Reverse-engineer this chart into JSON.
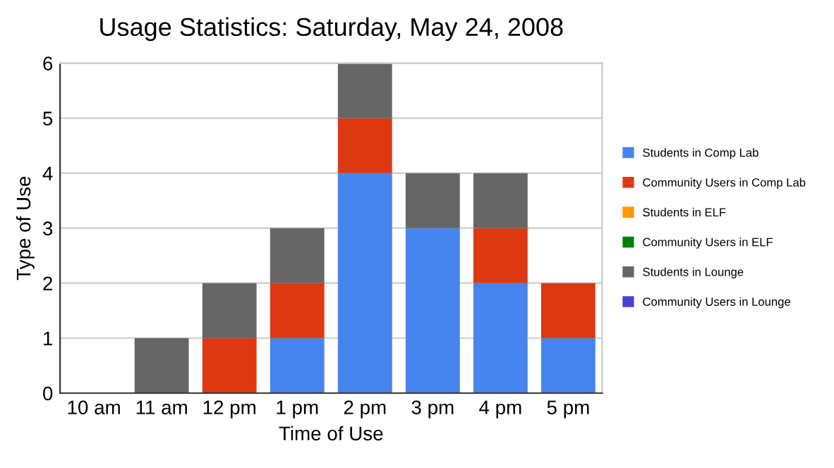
{
  "chart_data": {
    "type": "bar",
    "stacked": true,
    "title": "Usage Statistics: Saturday, May 24, 2008",
    "xlabel": "Time of Use",
    "ylabel": "Type of Use",
    "categories": [
      "10 am",
      "11 am",
      "12 pm",
      "1 pm",
      "2 pm",
      "3 pm",
      "4 pm",
      "5 pm"
    ],
    "series": [
      {
        "name": "Students in Comp Lab",
        "color": "#4684ee",
        "values": [
          0,
          0,
          0,
          1,
          4,
          3,
          2,
          1
        ]
      },
      {
        "name": "Community Users in Comp Lab",
        "color": "#dc3912",
        "values": [
          0,
          0,
          1,
          1,
          1,
          0,
          1,
          1
        ]
      },
      {
        "name": "Students in ELF",
        "color": "#ff9900",
        "values": [
          0,
          0,
          0,
          0,
          0,
          0,
          0,
          0
        ]
      },
      {
        "name": "Community Users in ELF",
        "color": "#008000",
        "values": [
          0,
          0,
          0,
          0,
          0,
          0,
          0,
          0
        ]
      },
      {
        "name": "Students in Lounge",
        "color": "#666666",
        "values": [
          0,
          1,
          1,
          1,
          1,
          1,
          1,
          0
        ]
      },
      {
        "name": "Community Users in Lounge",
        "color": "#4942cc",
        "values": [
          0,
          0,
          0,
          0,
          0,
          0,
          0,
          0
        ]
      }
    ],
    "ylim": [
      0,
      6
    ],
    "yticks": [
      0,
      1,
      2,
      3,
      4,
      5,
      6
    ],
    "grid": "y",
    "legend": "right"
  }
}
